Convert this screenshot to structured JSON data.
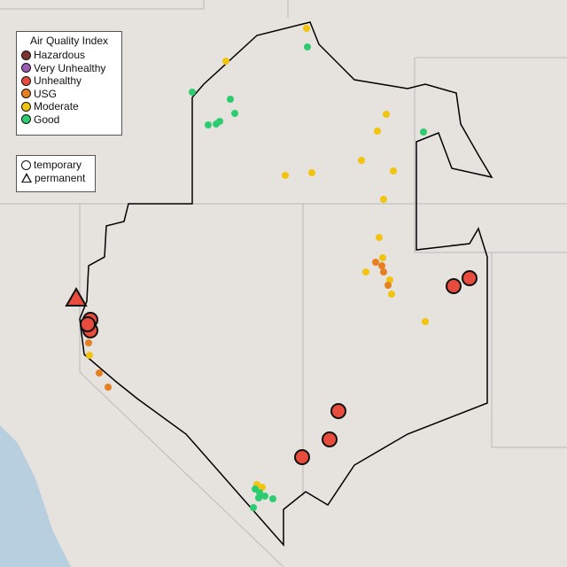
{
  "legend": {
    "title": "Air Quality Index",
    "categories": [
      {
        "label": "Hazardous",
        "color": "#7e3431"
      },
      {
        "label": "Very Unhealthy",
        "color": "#9b59b6"
      },
      {
        "label": "Unhealthy",
        "color": "#e74c3c"
      },
      {
        "label": "USG",
        "color": "#e67e22"
      },
      {
        "label": "Moderate",
        "color": "#f1c40f"
      },
      {
        "label": "Good",
        "color": "#2ecc71"
      }
    ],
    "types": [
      {
        "label": "temporary",
        "shape": "circle"
      },
      {
        "label": "permanent",
        "shape": "triangle"
      }
    ]
  }
}
